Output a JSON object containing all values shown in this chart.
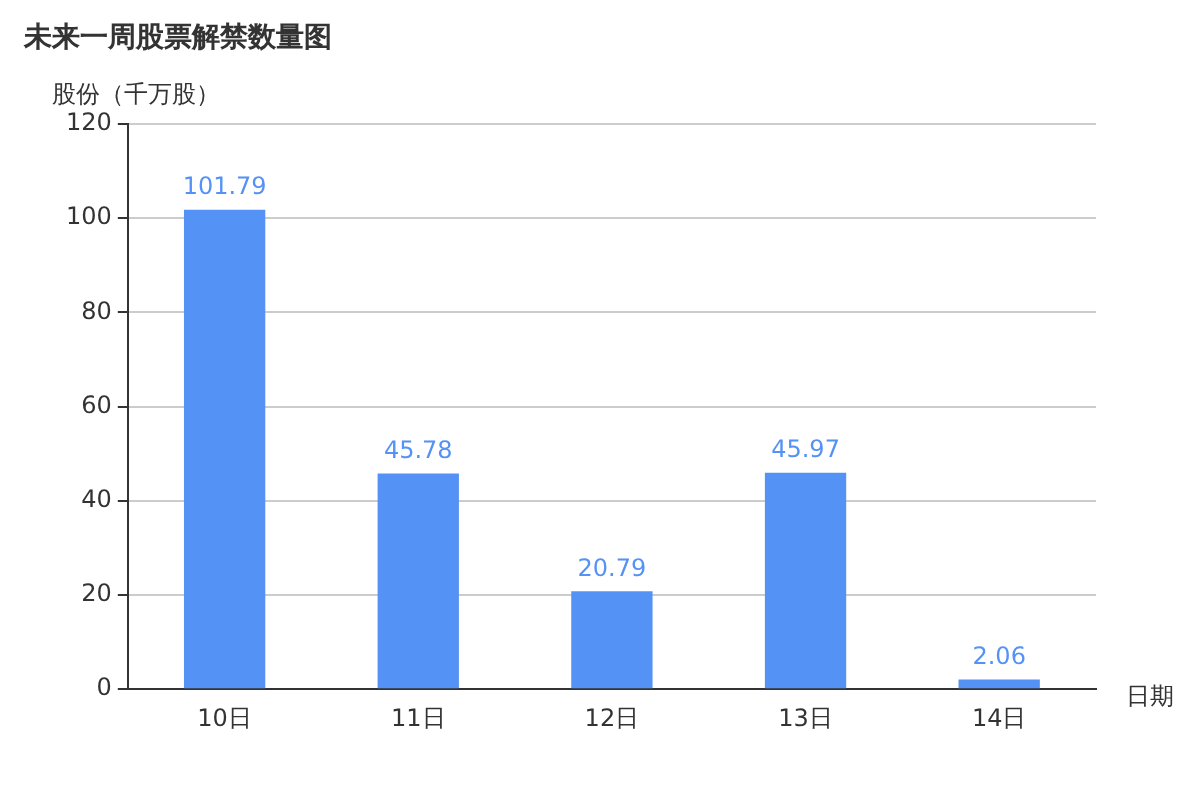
{
  "chart_data": {
    "type": "bar",
    "title": "未来一周股票解禁数量图",
    "ylabel": "股份（千万股）",
    "xlabel": "日期",
    "categories": [
      "10日",
      "11日",
      "12日",
      "13日",
      "14日"
    ],
    "values": [
      101.79,
      45.78,
      20.79,
      45.97,
      2.06
    ],
    "color": "#5592f5",
    "ylim": [
      0,
      120
    ],
    "yticks": [
      0,
      20,
      40,
      60,
      80,
      100,
      120
    ],
    "grid": "y",
    "data_labels": true
  }
}
